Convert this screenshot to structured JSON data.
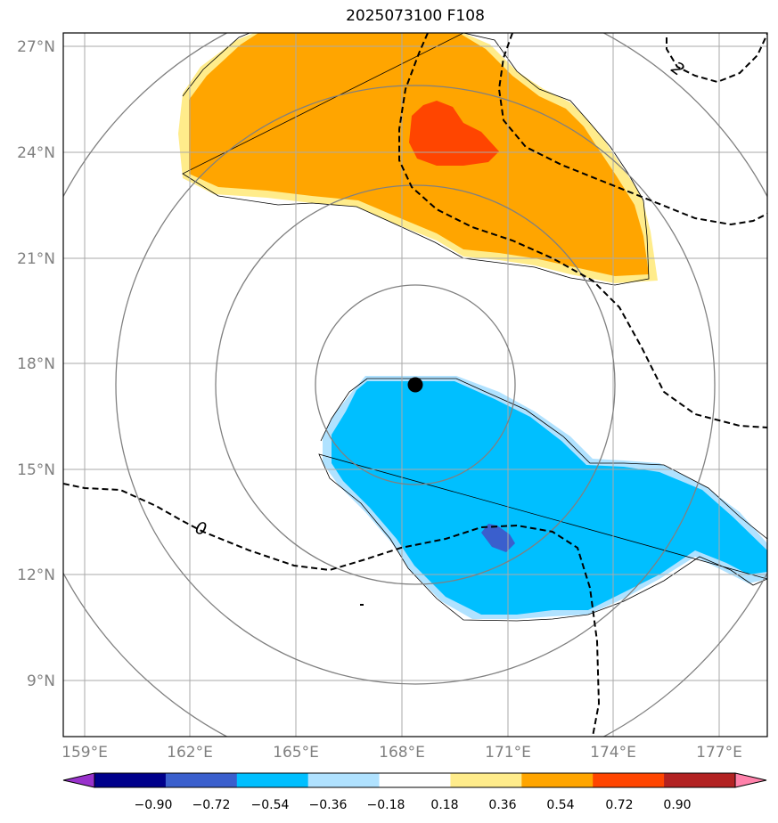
{
  "title": "2025073100 F108",
  "lat_labels": [
    "27°N",
    "24°N",
    "21°N",
    "18°N",
    "15°N",
    "12°N",
    "9°N"
  ],
  "lon_labels": [
    "159°E",
    "162°E",
    "165°E",
    "168°E",
    "171°E",
    "174°E",
    "177°E"
  ],
  "contour_labels": [
    "0",
    "2"
  ],
  "colorbar": {
    "ticks": [
      "−0.90",
      "−0.72",
      "−0.54",
      "−0.36",
      "−0.18",
      "0.18",
      "0.36",
      "0.54",
      "0.72",
      "0.90"
    ],
    "colors": [
      "#9932cc",
      "#00008b",
      "#3a5fcd",
      "#00bfff",
      "#b0e2ff",
      "#ffffff",
      "#ffec8b",
      "#ffa500",
      "#ff4500",
      "#b22222",
      "#ff82ab"
    ]
  },
  "storm_center": {
    "lat": 17.4,
    "lon": 168.4
  }
}
